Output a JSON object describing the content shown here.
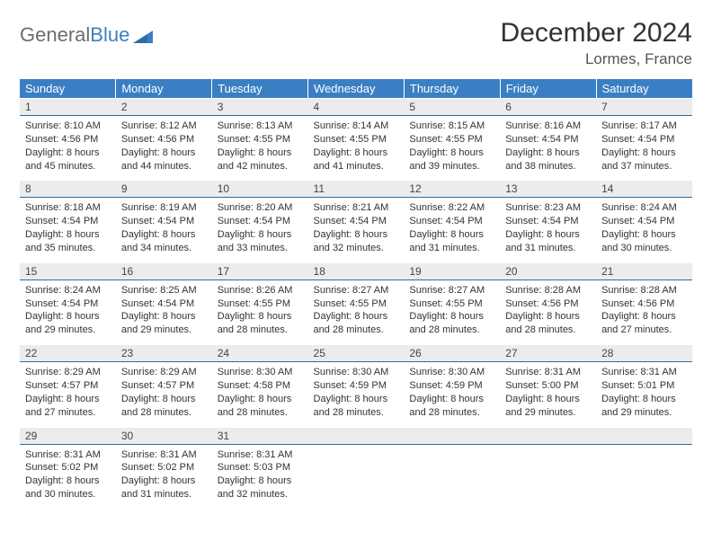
{
  "logo": {
    "text_a": "General",
    "text_b": "Blue",
    "triangle_color": "#3a7fc4"
  },
  "title": "December 2024",
  "location": "Lormes, France",
  "dow_header_bg": "#3a7fc4",
  "daynum_bg": "#ececec",
  "daynum_border": "#2e6ba8",
  "text_color": "#333333",
  "days_of_week": [
    "Sunday",
    "Monday",
    "Tuesday",
    "Wednesday",
    "Thursday",
    "Friday",
    "Saturday"
  ],
  "weeks": [
    [
      {
        "n": "1",
        "sr": "8:10 AM",
        "ss": "4:56 PM",
        "dl": "8 hours and 45 minutes."
      },
      {
        "n": "2",
        "sr": "8:12 AM",
        "ss": "4:56 PM",
        "dl": "8 hours and 44 minutes."
      },
      {
        "n": "3",
        "sr": "8:13 AM",
        "ss": "4:55 PM",
        "dl": "8 hours and 42 minutes."
      },
      {
        "n": "4",
        "sr": "8:14 AM",
        "ss": "4:55 PM",
        "dl": "8 hours and 41 minutes."
      },
      {
        "n": "5",
        "sr": "8:15 AM",
        "ss": "4:55 PM",
        "dl": "8 hours and 39 minutes."
      },
      {
        "n": "6",
        "sr": "8:16 AM",
        "ss": "4:54 PM",
        "dl": "8 hours and 38 minutes."
      },
      {
        "n": "7",
        "sr": "8:17 AM",
        "ss": "4:54 PM",
        "dl": "8 hours and 37 minutes."
      }
    ],
    [
      {
        "n": "8",
        "sr": "8:18 AM",
        "ss": "4:54 PM",
        "dl": "8 hours and 35 minutes."
      },
      {
        "n": "9",
        "sr": "8:19 AM",
        "ss": "4:54 PM",
        "dl": "8 hours and 34 minutes."
      },
      {
        "n": "10",
        "sr": "8:20 AM",
        "ss": "4:54 PM",
        "dl": "8 hours and 33 minutes."
      },
      {
        "n": "11",
        "sr": "8:21 AM",
        "ss": "4:54 PM",
        "dl": "8 hours and 32 minutes."
      },
      {
        "n": "12",
        "sr": "8:22 AM",
        "ss": "4:54 PM",
        "dl": "8 hours and 31 minutes."
      },
      {
        "n": "13",
        "sr": "8:23 AM",
        "ss": "4:54 PM",
        "dl": "8 hours and 31 minutes."
      },
      {
        "n": "14",
        "sr": "8:24 AM",
        "ss": "4:54 PM",
        "dl": "8 hours and 30 minutes."
      }
    ],
    [
      {
        "n": "15",
        "sr": "8:24 AM",
        "ss": "4:54 PM",
        "dl": "8 hours and 29 minutes."
      },
      {
        "n": "16",
        "sr": "8:25 AM",
        "ss": "4:54 PM",
        "dl": "8 hours and 29 minutes."
      },
      {
        "n": "17",
        "sr": "8:26 AM",
        "ss": "4:55 PM",
        "dl": "8 hours and 28 minutes."
      },
      {
        "n": "18",
        "sr": "8:27 AM",
        "ss": "4:55 PM",
        "dl": "8 hours and 28 minutes."
      },
      {
        "n": "19",
        "sr": "8:27 AM",
        "ss": "4:55 PM",
        "dl": "8 hours and 28 minutes."
      },
      {
        "n": "20",
        "sr": "8:28 AM",
        "ss": "4:56 PM",
        "dl": "8 hours and 28 minutes."
      },
      {
        "n": "21",
        "sr": "8:28 AM",
        "ss": "4:56 PM",
        "dl": "8 hours and 27 minutes."
      }
    ],
    [
      {
        "n": "22",
        "sr": "8:29 AM",
        "ss": "4:57 PM",
        "dl": "8 hours and 27 minutes."
      },
      {
        "n": "23",
        "sr": "8:29 AM",
        "ss": "4:57 PM",
        "dl": "8 hours and 28 minutes."
      },
      {
        "n": "24",
        "sr": "8:30 AM",
        "ss": "4:58 PM",
        "dl": "8 hours and 28 minutes."
      },
      {
        "n": "25",
        "sr": "8:30 AM",
        "ss": "4:59 PM",
        "dl": "8 hours and 28 minutes."
      },
      {
        "n": "26",
        "sr": "8:30 AM",
        "ss": "4:59 PM",
        "dl": "8 hours and 28 minutes."
      },
      {
        "n": "27",
        "sr": "8:31 AM",
        "ss": "5:00 PM",
        "dl": "8 hours and 29 minutes."
      },
      {
        "n": "28",
        "sr": "8:31 AM",
        "ss": "5:01 PM",
        "dl": "8 hours and 29 minutes."
      }
    ],
    [
      {
        "n": "29",
        "sr": "8:31 AM",
        "ss": "5:02 PM",
        "dl": "8 hours and 30 minutes."
      },
      {
        "n": "30",
        "sr": "8:31 AM",
        "ss": "5:02 PM",
        "dl": "8 hours and 31 minutes."
      },
      {
        "n": "31",
        "sr": "8:31 AM",
        "ss": "5:03 PM",
        "dl": "8 hours and 32 minutes."
      },
      null,
      null,
      null,
      null
    ]
  ],
  "labels": {
    "sunrise": "Sunrise:",
    "sunset": "Sunset:",
    "daylight": "Daylight:"
  }
}
